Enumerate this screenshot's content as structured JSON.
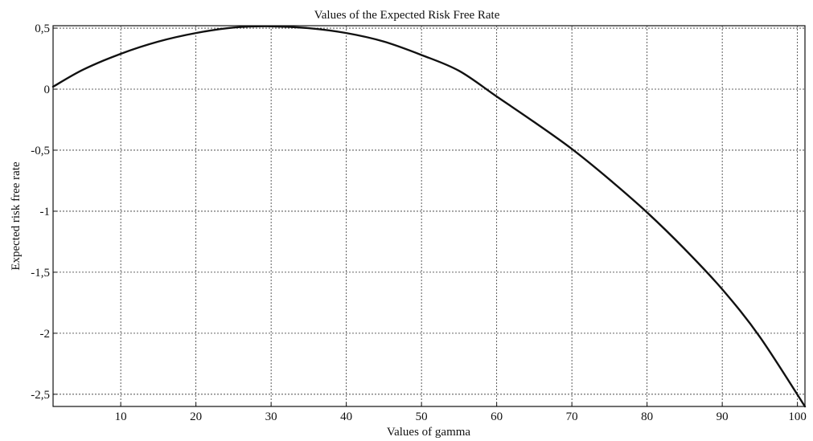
{
  "chart_data": {
    "type": "line",
    "title": "Values of the Expected Risk Free Rate",
    "xlabel": "Values of gamma",
    "ylabel": "Expected risk free rate",
    "xlim": [
      1,
      101
    ],
    "ylim": [
      -2.6,
      0.52
    ],
    "xticks": [
      10,
      20,
      30,
      40,
      50,
      60,
      70,
      80,
      90,
      100
    ],
    "xtick_labels": [
      "10",
      "20",
      "30",
      "40",
      "50",
      "60",
      "70",
      "80",
      "90",
      "100"
    ],
    "yticks": [
      0.5,
      0,
      -0.5,
      -1,
      -1.5,
      -2,
      -2.5
    ],
    "ytick_labels": [
      "0,5",
      "0",
      "-0,5",
      "-1",
      "-1,5",
      "-2",
      "-2,5"
    ],
    "grid": true,
    "line_color": "#111111",
    "series": [
      {
        "x": [
          1,
          5,
          10,
          15,
          20,
          25,
          30,
          35,
          40,
          45,
          50,
          55,
          60,
          65,
          70,
          75,
          80,
          85,
          90,
          95,
          101
        ],
        "values": [
          0.02,
          0.16,
          0.29,
          0.39,
          0.46,
          0.505,
          0.515,
          0.5,
          0.46,
          0.39,
          0.28,
          0.15,
          -0.06,
          -0.27,
          -0.49,
          -0.74,
          -1.01,
          -1.31,
          -1.64,
          -2.03,
          -2.6
        ]
      }
    ]
  }
}
